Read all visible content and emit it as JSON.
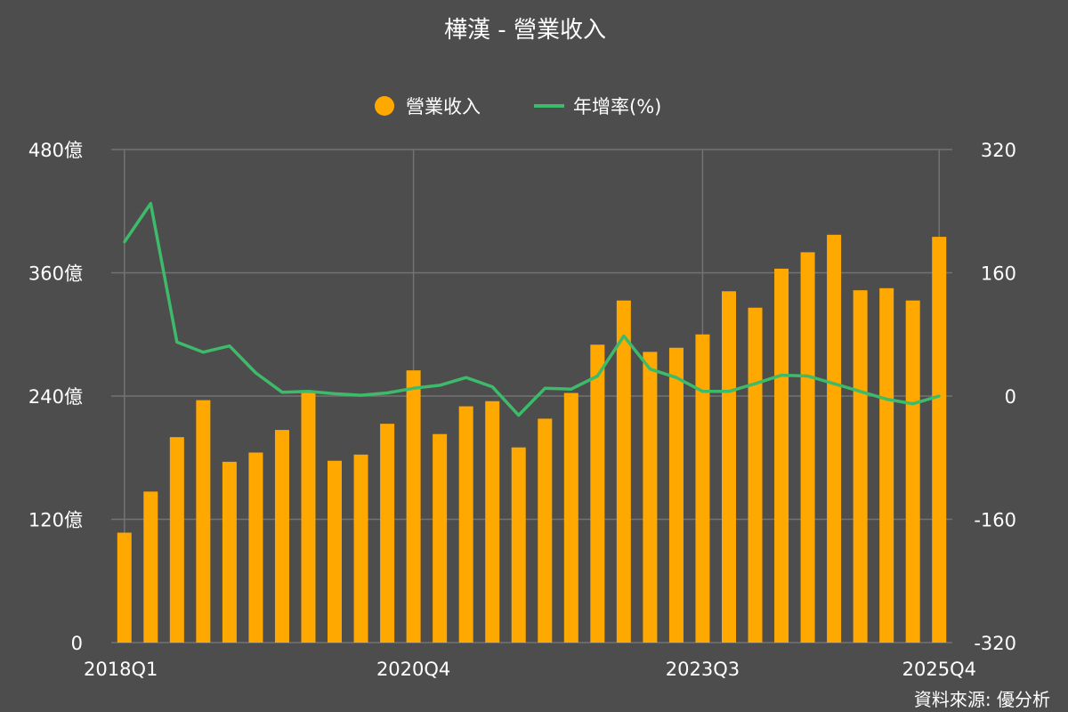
{
  "chart_data": {
    "type": "bar+line",
    "title": "樺漢 - 營業收入",
    "source": "資料來源: 優分析",
    "legend": {
      "position": "top-center",
      "items": [
        {
          "label": "營業收入",
          "marker": "circle",
          "color": "#ffa800"
        },
        {
          "label": "年增率(%)",
          "marker": "line",
          "color": "#3dbb6a"
        }
      ]
    },
    "colors": {
      "background": "#4d4d4d",
      "text": "#ffffff",
      "grid": "#737373"
    },
    "categories": [
      "2018Q1",
      "2018Q2",
      "2018Q3",
      "2018Q4",
      "2019Q1",
      "2019Q2",
      "2019Q3",
      "2019Q4",
      "2020Q1",
      "2020Q2",
      "2020Q3",
      "2020Q4",
      "2021Q1",
      "2021Q2",
      "2021Q3",
      "2021Q4",
      "2022Q1",
      "2022Q2",
      "2022Q3",
      "2022Q4",
      "2023Q1",
      "2023Q2",
      "2023Q3",
      "2023Q4",
      "2024Q1",
      "2024Q2",
      "2024Q3",
      "2024Q4",
      "2025Q1",
      "2025Q2",
      "2025Q3",
      "2025Q4"
    ],
    "x_tick_labels": [
      "2018Q1",
      "2020Q4",
      "2023Q3",
      "2025Q4"
    ],
    "y_left": {
      "min": 0,
      "max": 480,
      "ticks": [
        0,
        120,
        240,
        360,
        480
      ],
      "suffix": "億"
    },
    "y_right": {
      "min": -320,
      "max": 320,
      "ticks": [
        -320,
        -160,
        0,
        160,
        320
      ]
    },
    "grid": true,
    "series": [
      {
        "name": "營業收入",
        "type": "bar",
        "axis": "left",
        "color": "#ffa800",
        "values": [
          107,
          147,
          200,
          236,
          176,
          185,
          207,
          245,
          177,
          183,
          213,
          265,
          203,
          230,
          235,
          190,
          218,
          243,
          290,
          333,
          283,
          287,
          300,
          342,
          326,
          364,
          380,
          397,
          343,
          345,
          333,
          395
        ]
      },
      {
        "name": "年增率(%)",
        "type": "line",
        "axis": "right",
        "color": "#3dbb6a",
        "values": [
          200,
          250,
          70,
          57,
          65,
          30,
          5,
          6,
          3,
          1,
          4,
          10,
          14,
          24,
          12,
          -25,
          10,
          9,
          26,
          78,
          35,
          24,
          6,
          6,
          16,
          27,
          26,
          16,
          6,
          -4,
          -10,
          0
        ]
      }
    ]
  }
}
